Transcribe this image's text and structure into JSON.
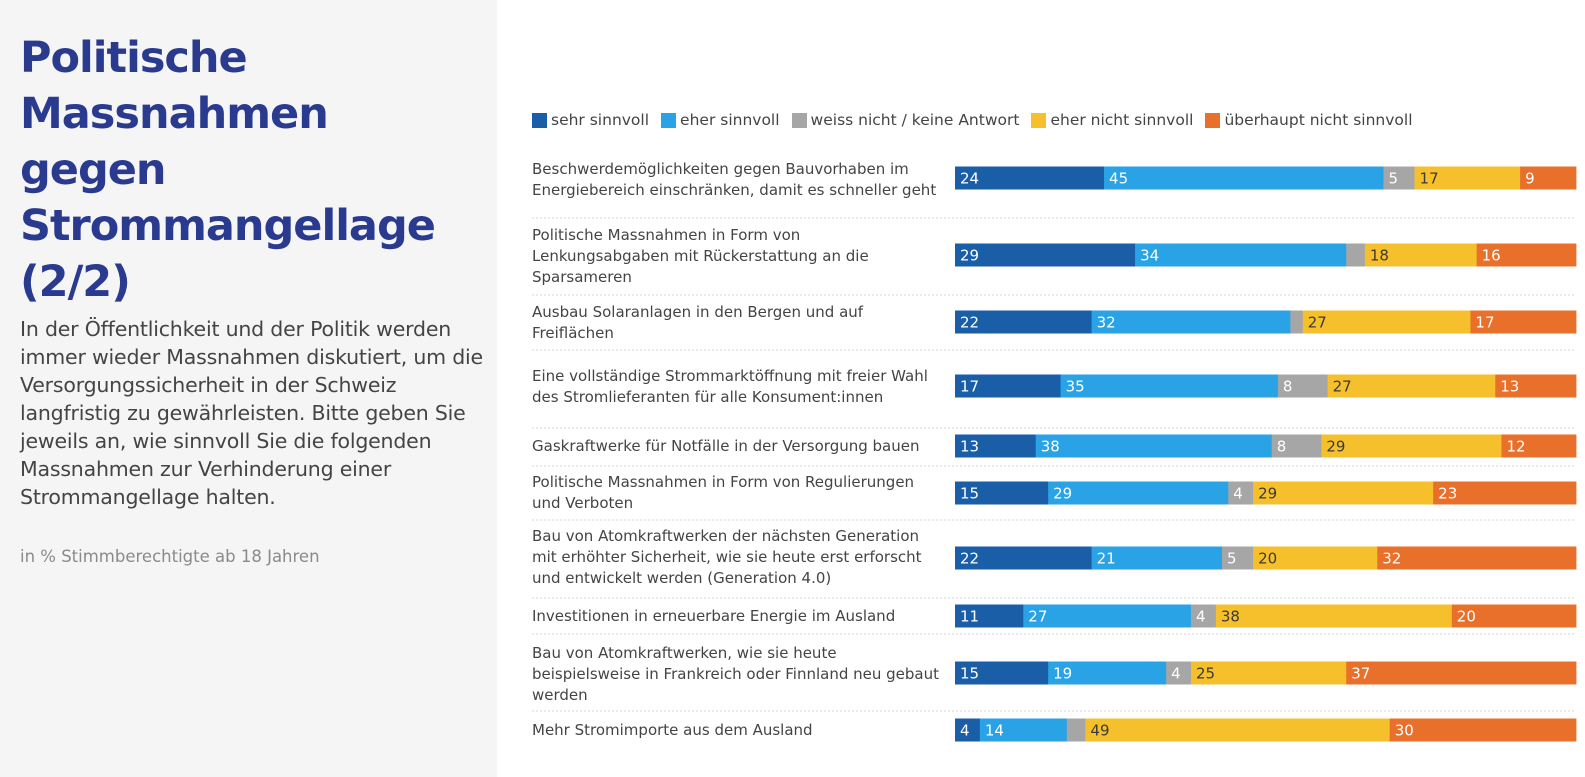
{
  "title": "Politische Massnahmen gegen Strommangellage (2/2)",
  "description": "In der Öffentlichkeit und der Politik werden immer wieder Massnahmen diskutiert, um die Versorgungssicherheit in der Schweiz langfristig zu gewährleisten. Bitte geben Sie jeweils an, wie sinnvoll Sie die folgenden Massnahmen zur Verhinderung einer Strommangellage halten.",
  "unit_note": "in % Stimmberechtigte ab 18 Jahren",
  "chart_data": {
    "type": "bar",
    "orientation": "horizontal",
    "stacked": true,
    "legend_position": "top",
    "xlim": [
      0,
      100
    ],
    "categories": [
      "Beschwerdemöglichkeiten gegen Bauvorhaben im Energiebereich einschränken, damit es schneller geht",
      "Politische Massnahmen in Form von Lenkungsabgaben mit Rückerstattung an die Sparsameren",
      "Ausbau Solaranlagen in den Bergen und auf Freiflächen",
      "Eine vollständige Strommarktöffnung mit freier Wahl des Stromlieferanten für alle Konsument:innen",
      "Gaskraftwerke für Notfälle in der Versorgung bauen",
      "Politische Massnahmen in Form von Regulierungen und Verboten",
      "Bau von Atomkraftwerken der nächsten Generation mit erhöhter Sicherheit, wie sie heute erst erforscht und entwickelt werden (Generation 4.0)",
      "Investitionen in erneuerbare Energie im Ausland",
      "Bau von Atomkraftwerken, wie sie heute beispielsweise in Frankreich oder Finnland neu gebaut werden",
      "Mehr Stromimporte aus dem Ausland"
    ],
    "series": [
      {
        "name": "sehr sinnvoll",
        "color": "#1b5ea8",
        "label_color": "#ffffff",
        "values": [
          24,
          29,
          22,
          17,
          13,
          15,
          22,
          11,
          15,
          4
        ]
      },
      {
        "name": "eher sinnvoll",
        "color": "#29a3e6",
        "label_color": "#ffffff",
        "values": [
          45,
          34,
          32,
          35,
          38,
          29,
          21,
          27,
          19,
          14
        ]
      },
      {
        "name": "weiss nicht / keine Antwort",
        "color": "#a6a6a6",
        "label_color": "#ffffff",
        "values": [
          5,
          3,
          2,
          8,
          8,
          4,
          5,
          4,
          4,
          3
        ]
      },
      {
        "name": "eher nicht sinnvoll",
        "color": "#f6c02c",
        "label_color": "#3a3a3a",
        "values": [
          17,
          18,
          27,
          27,
          29,
          29,
          20,
          38,
          25,
          49
        ]
      },
      {
        "name": "überhaupt nicht sinnvoll",
        "color": "#e8702a",
        "label_color": "#ffffff",
        "values": [
          9,
          16,
          17,
          13,
          12,
          23,
          32,
          20,
          37,
          30
        ]
      }
    ],
    "value_labels": [
      [
        "24",
        "45",
        "5",
        "17",
        "9"
      ],
      [
        "29",
        "34",
        "",
        "18",
        "16"
      ],
      [
        "22",
        "32",
        "",
        "27",
        "17"
      ],
      [
        "17",
        "35",
        "8",
        "27",
        "13"
      ],
      [
        "13",
        "38",
        "8",
        "29",
        "12"
      ],
      [
        "15",
        "29",
        "4",
        "29",
        "23"
      ],
      [
        "22",
        "21",
        "5",
        "20",
        "32"
      ],
      [
        "11",
        "27",
        "4",
        "38",
        "20"
      ],
      [
        "15",
        "19",
        "4",
        "25",
        "37"
      ],
      [
        "4",
        "14",
        "",
        "49",
        "30"
      ]
    ]
  }
}
